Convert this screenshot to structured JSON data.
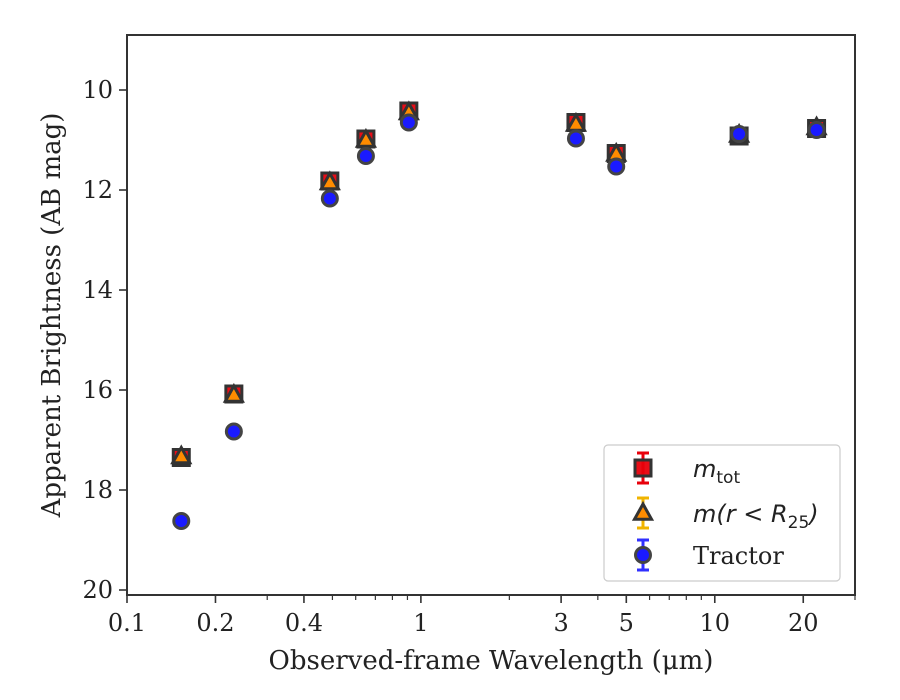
{
  "chart_data": {
    "type": "scatter",
    "title": "",
    "xlabel": "Observed-frame Wavelength (μm)",
    "ylabel": "Apparent Brightness (AB mag)",
    "xscale": "log",
    "xlim": [
      0.1,
      30
    ],
    "ylim": [
      20.1,
      8.9
    ],
    "y_inverted": true,
    "grid": false,
    "legend_position": "lower-right",
    "x_ticks": [
      {
        "value": 0.1,
        "label": "0.1"
      },
      {
        "value": 0.2,
        "label": "0.2"
      },
      {
        "value": 0.4,
        "label": "0.4"
      },
      {
        "value": 1,
        "label": "1"
      },
      {
        "value": 3,
        "label": "3"
      },
      {
        "value": 5,
        "label": "5"
      },
      {
        "value": 10,
        "label": "10"
      },
      {
        "value": 20,
        "label": "20"
      }
    ],
    "x_minor_ticks": [
      0.3,
      0.5,
      0.6,
      0.7,
      0.8,
      0.9,
      2,
      4,
      6,
      7,
      8,
      9,
      30
    ],
    "y_ticks": [
      {
        "value": 10,
        "label": "10"
      },
      {
        "value": 12,
        "label": "12"
      },
      {
        "value": 14,
        "label": "14"
      },
      {
        "value": 16,
        "label": "16"
      },
      {
        "value": 18,
        "label": "18"
      },
      {
        "value": 20,
        "label": "20"
      }
    ],
    "series": [
      {
        "name": "m_tot",
        "legend_main": "m",
        "legend_sub": "tot",
        "marker": "square",
        "color": "#e8000b",
        "edge": "#333333",
        "errcolor": "#e8000b",
        "x": [
          0.153,
          0.231,
          0.49,
          0.65,
          0.91,
          3.37,
          4.62,
          12.1,
          22.2
        ],
        "y": [
          17.35,
          16.08,
          11.82,
          10.98,
          10.42,
          10.65,
          11.27,
          10.92,
          10.77
        ]
      },
      {
        "name": "m(r<R_25)",
        "legend_main": "m(r < R",
        "legend_sub": "25",
        "legend_close": ")",
        "marker": "triangle",
        "color": "#ff8c00",
        "edge": "#333333",
        "errcolor": "#f0b400",
        "x": [
          0.153,
          0.231,
          0.49,
          0.65,
          0.91,
          3.37,
          4.62,
          12.1,
          22.2
        ],
        "y": [
          17.33,
          16.1,
          11.85,
          11.0,
          10.45,
          10.68,
          11.28,
          10.9,
          10.75
        ]
      },
      {
        "name": "Tractor",
        "legend_main": "Tractor",
        "marker": "circle",
        "color": "#1a1aff",
        "edge": "#444444",
        "errcolor": "#3030ff",
        "x": [
          0.153,
          0.231,
          0.49,
          0.65,
          0.91,
          3.37,
          4.62,
          12.1,
          22.2
        ],
        "y": [
          18.62,
          16.83,
          12.17,
          11.32,
          10.65,
          10.97,
          11.53,
          10.88,
          10.8
        ]
      }
    ]
  }
}
